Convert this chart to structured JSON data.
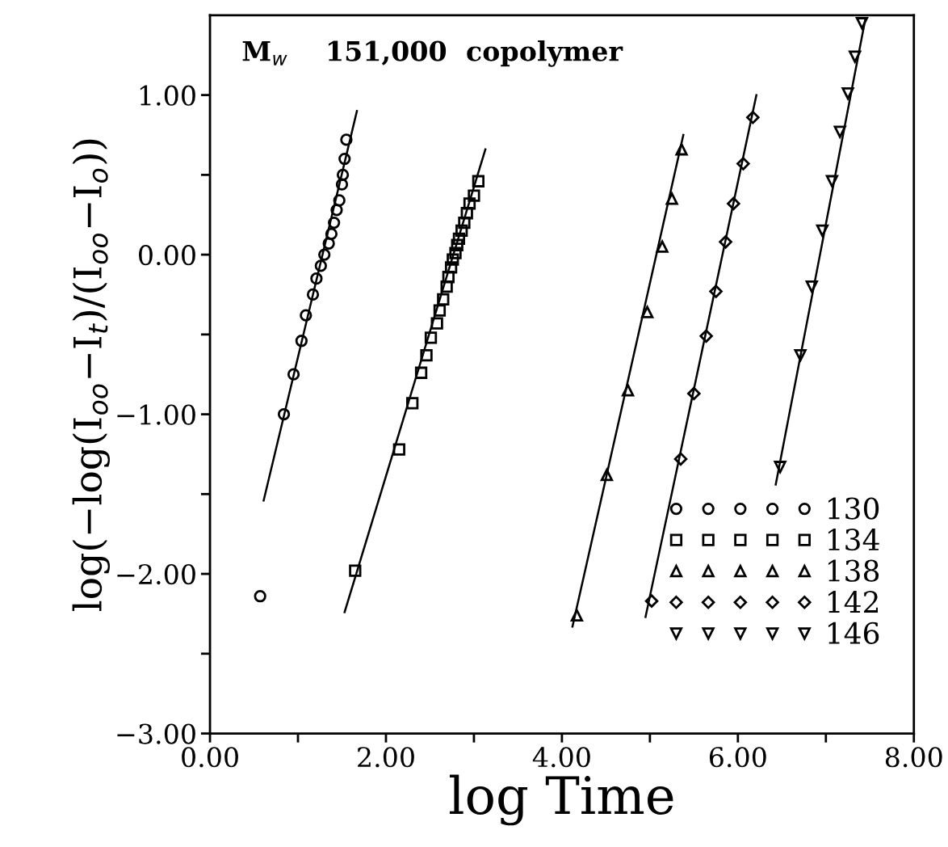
{
  "chart_data": {
    "type": "scatter",
    "xlabel": "log Time",
    "ylabel": "log(−log(I$_{oo}$−I$_{t}$)/(I$_{oo}$−I$_{o}$))",
    "annotations": [
      "M$_{w}$    151,000  copolymer"
    ],
    "xlim": [
      0,
      8
    ],
    "ylim": [
      -3,
      1.5
    ],
    "xticks": [
      {
        "value": 0,
        "label": "0.00"
      },
      {
        "value": 1,
        "label": null
      },
      {
        "value": 2,
        "label": "2.00"
      },
      {
        "value": 3,
        "label": null
      },
      {
        "value": 4,
        "label": "4.00"
      },
      {
        "value": 5,
        "label": null
      },
      {
        "value": 6,
        "label": "6.00"
      },
      {
        "value": 7,
        "label": null
      },
      {
        "value": 8,
        "label": "8.00"
      }
    ],
    "yticks": [
      {
        "value": -3,
        "label": "−3.00"
      },
      {
        "value": -2.5,
        "label": null
      },
      {
        "value": -2,
        "label": "−2.00"
      },
      {
        "value": -1.5,
        "label": null
      },
      {
        "value": -1,
        "label": "−1.00"
      },
      {
        "value": -0.5,
        "label": null
      },
      {
        "value": 0,
        "label": "0.00"
      },
      {
        "value": 0.5,
        "label": null
      },
      {
        "value": 1,
        "label": "1.00"
      }
    ],
    "grid": false,
    "legend": "bottom right",
    "series": [
      {
        "name": "130",
        "marker": "circle",
        "color": "#000000",
        "x": [
          0.57,
          0.84,
          0.95,
          1.04,
          1.09,
          1.17,
          1.21,
          1.26,
          1.3,
          1.35,
          1.38,
          1.41,
          1.44,
          1.47,
          1.5,
          1.51,
          1.53,
          1.55
        ],
        "values": [
          -2.14,
          -1.0,
          -0.75,
          -0.54,
          -0.38,
          -0.25,
          -0.15,
          -0.07,
          0.0,
          0.07,
          0.13,
          0.2,
          0.28,
          0.34,
          0.44,
          0.5,
          0.6,
          0.72
        ]
      },
      {
        "name": "134",
        "marker": "square",
        "color": "#000000",
        "x": [
          1.65,
          2.15,
          2.3,
          2.4,
          2.46,
          2.51,
          2.58,
          2.61,
          2.65,
          2.69,
          2.71,
          2.74,
          2.76,
          2.79,
          2.81,
          2.83,
          2.86,
          2.89,
          2.92,
          2.95,
          3.0,
          3.05
        ],
        "values": [
          -1.98,
          -1.22,
          -0.93,
          -0.74,
          -0.63,
          -0.52,
          -0.43,
          -0.35,
          -0.28,
          -0.2,
          -0.14,
          -0.08,
          -0.03,
          0.01,
          0.06,
          0.1,
          0.15,
          0.2,
          0.26,
          0.32,
          0.37,
          0.46
        ]
      },
      {
        "name": "138",
        "marker": "triangle",
        "color": "#000000",
        "x": [
          4.17,
          4.51,
          4.75,
          4.97,
          5.14,
          5.25,
          5.36
        ],
        "values": [
          -2.26,
          -1.38,
          -0.85,
          -0.36,
          0.05,
          0.35,
          0.66
        ]
      },
      {
        "name": "142",
        "marker": "diamond",
        "color": "#000000",
        "x": [
          5.02,
          5.35,
          5.5,
          5.64,
          5.75,
          5.86,
          5.95,
          6.06,
          6.17
        ],
        "values": [
          -2.17,
          -1.28,
          -0.87,
          -0.51,
          -0.23,
          0.08,
          0.32,
          0.57,
          0.86
        ]
      },
      {
        "name": "146",
        "marker": "triangle_down",
        "color": "#000000",
        "x": [
          6.48,
          6.71,
          6.84,
          6.96,
          7.07,
          7.16,
          7.25,
          7.33,
          7.41
        ],
        "values": [
          -1.33,
          -0.63,
          -0.2,
          0.15,
          0.46,
          0.77,
          1.01,
          1.24,
          1.45
        ]
      },
      {
        "type": "line",
        "color": "#000000",
        "line_style": "solid",
        "x": [
          0.61,
          1.67
        ],
        "values": [
          -1.54,
          0.9
        ]
      },
      {
        "type": "line",
        "color": "#000000",
        "line_style": "solid",
        "x": [
          1.53,
          3.13
        ],
        "values": [
          -2.24,
          0.66
        ]
      },
      {
        "type": "line",
        "color": "#000000",
        "line_style": "solid",
        "x": [
          4.12,
          5.38
        ],
        "values": [
          -2.33,
          0.75
        ]
      },
      {
        "type": "line",
        "color": "#000000",
        "line_style": "solid",
        "x": [
          4.95,
          6.21
        ],
        "values": [
          -2.27,
          1.0
        ]
      },
      {
        "type": "line",
        "color": "#000000",
        "line_style": "solid",
        "x": [
          6.43,
          7.45
        ],
        "values": [
          -1.44,
          1.48
        ]
      }
    ]
  }
}
